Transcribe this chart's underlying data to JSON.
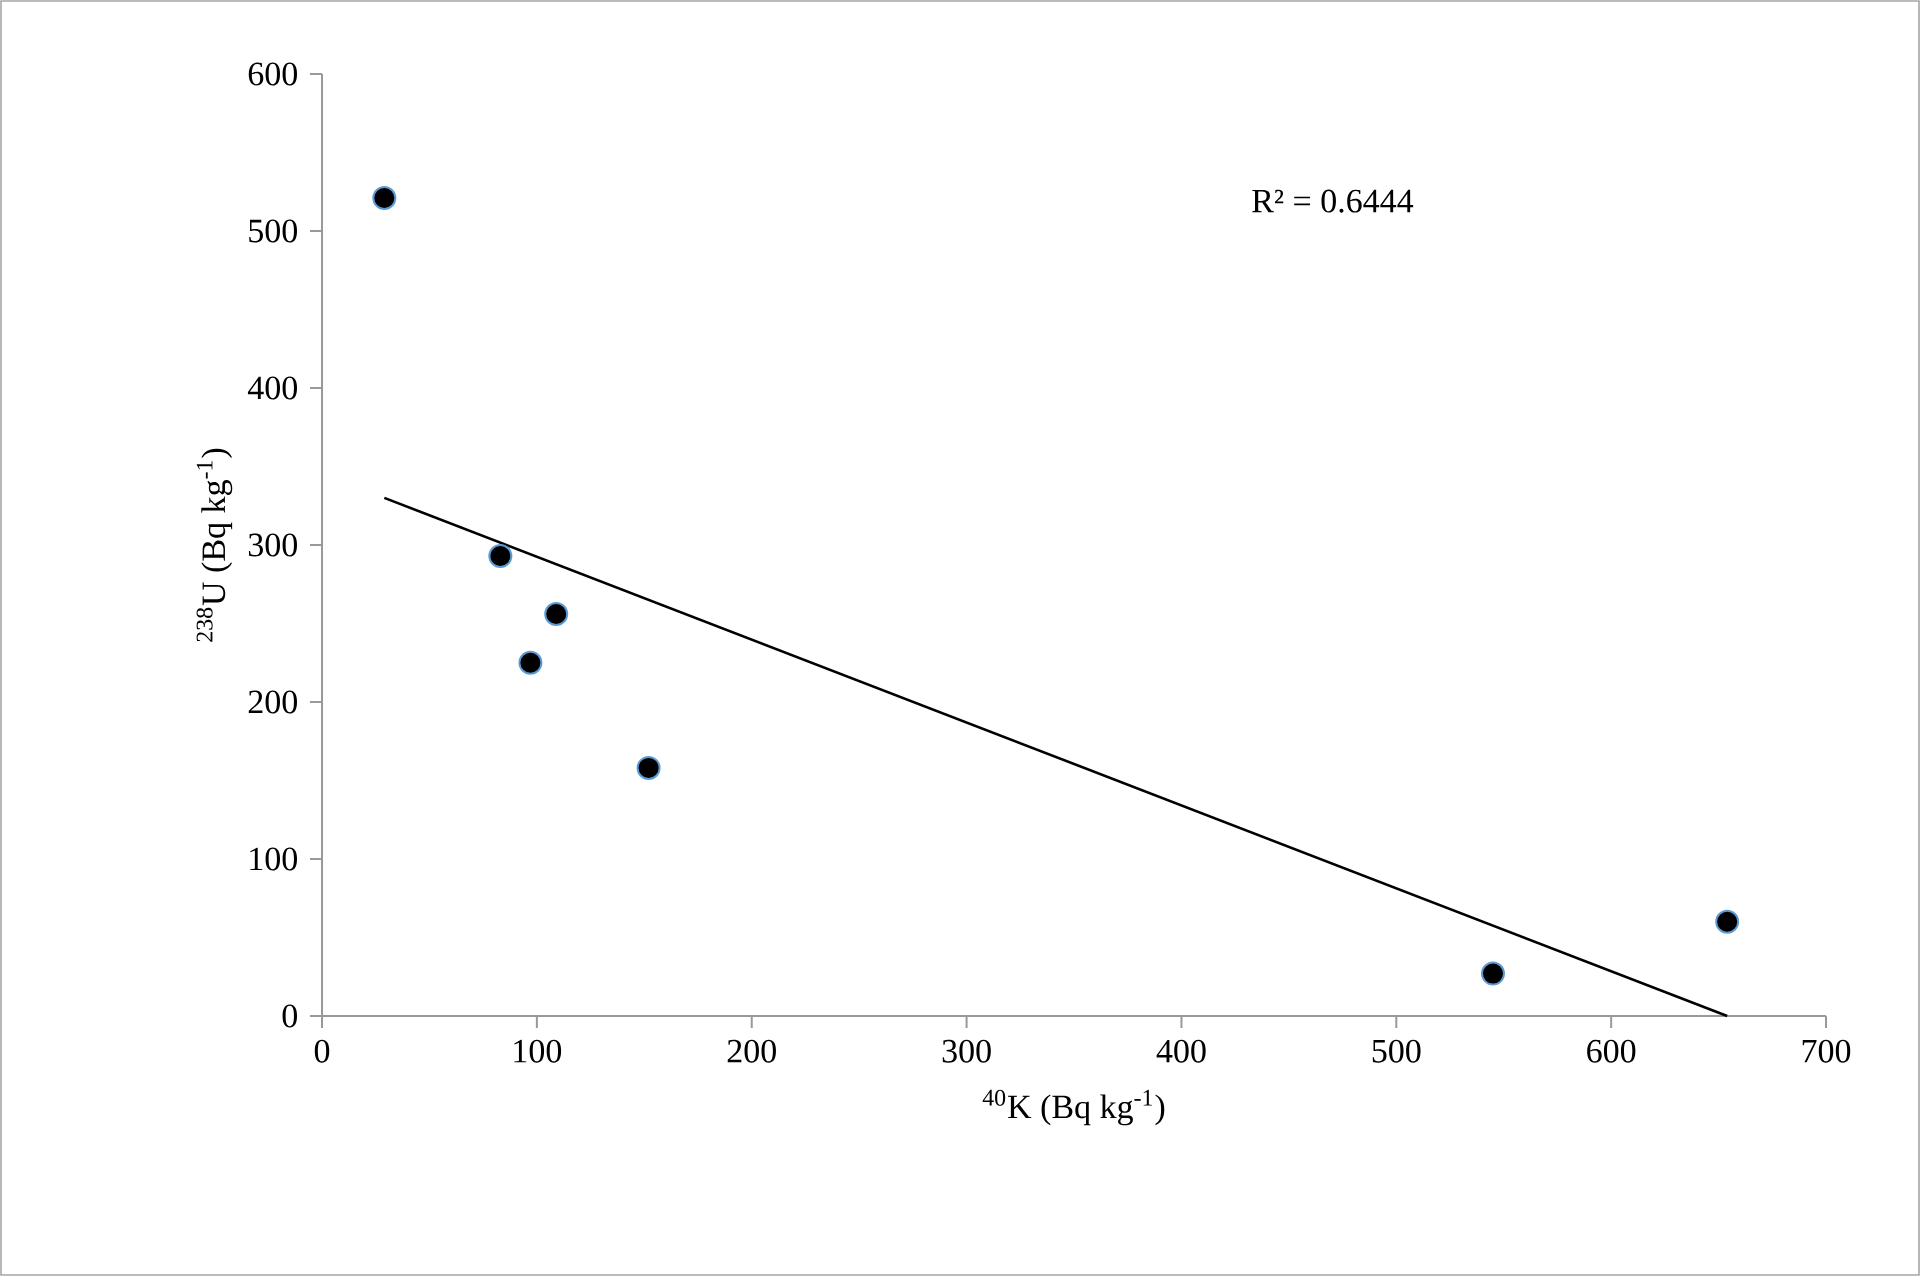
{
  "chart_data": {
    "type": "scatter",
    "xlabel": "$^{40}$K (Bq kg$^{-1}$)",
    "ylabel": "$^{238}$U (Bq kg$^{-1}$)",
    "annotations": [
      "R² = 0.6444"
    ],
    "xlim": [
      0,
      700
    ],
    "xticks": [
      0,
      100,
      200,
      300,
      400,
      500,
      600,
      700
    ],
    "ylim": [
      0,
      600
    ],
    "yticks": [
      0,
      100,
      200,
      300,
      400,
      500,
      600
    ],
    "grid": false,
    "series": [
      {
        "color": "#000000",
        "marker": "circle",
        "x": [
          29,
          83,
          97,
          109,
          152,
          545,
          654
        ],
        "values": [
          521,
          293,
          225,
          256,
          158,
          27,
          60
        ]
      },
      {
        "type": "line",
        "color": "#000000",
        "marker": "none",
        "line_style": "solid",
        "x": [
          29,
          654
        ],
        "values": [
          330,
          0
        ]
      }
    ]
  }
}
